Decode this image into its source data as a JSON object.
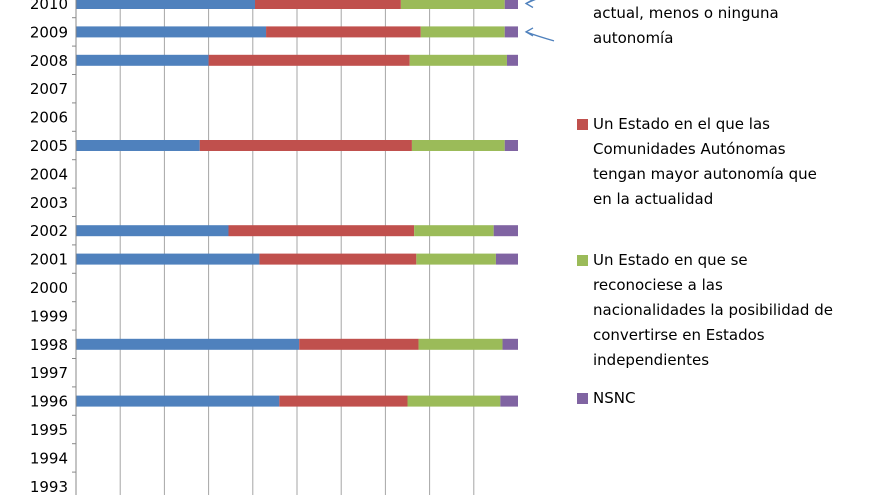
{
  "chart_data": {
    "type": "bar",
    "stacked": "percent",
    "orientation": "horizontal",
    "categories": [
      "2010",
      "2009",
      "2008",
      "2007",
      "2006",
      "2005",
      "2004",
      "2003",
      "2002",
      "2001",
      "2000",
      "1999",
      "1998",
      "1997",
      "1996",
      "1995",
      "1994",
      "1993"
    ],
    "series": [
      {
        "name": "",
        "color": "#4f81bd",
        "values": [
          40.5,
          43.0,
          30.0,
          null,
          null,
          28.0,
          null,
          null,
          34.5,
          41.5,
          null,
          null,
          50.5,
          null,
          46.0,
          null,
          null,
          null
        ]
      },
      {
        "name": "Un Estado en el que las Comunidades Autónomas tengan mayor autonomía que en la actualidad",
        "color": "#c0504d",
        "values": [
          33.0,
          35.0,
          45.5,
          null,
          null,
          48.0,
          null,
          null,
          42.0,
          35.5,
          null,
          null,
          27.0,
          null,
          29.0,
          null,
          null,
          null
        ]
      },
      {
        "name": "Un Estado en que se reconociese a las nacionalidades la posibilidad de convertirse en Estados independientes",
        "color": "#9bbb59",
        "values": [
          23.5,
          19.0,
          22.0,
          null,
          null,
          21.0,
          null,
          null,
          18.0,
          18.0,
          null,
          null,
          19.0,
          null,
          21.0,
          null,
          null,
          null
        ]
      },
      {
        "name": "NSNC",
        "color": "#8064a2",
        "values": [
          3.0,
          3.0,
          2.5,
          null,
          null,
          3.0,
          null,
          null,
          5.5,
          5.0,
          null,
          null,
          3.5,
          null,
          4.0,
          null,
          null,
          null
        ]
      }
    ],
    "xlim": [
      0,
      100
    ],
    "grid": true,
    "legend_position": "right",
    "legend": [
      {
        "text_lines": [
          "actual, menos o ninguna",
          "autonomía"
        ],
        "marker": false
      },
      {
        "text_lines": [
          "Un Estado en el que las",
          "Comunidades Autónomas",
          "tengan mayor autonomía que",
          "en la actualidad"
        ],
        "marker": true,
        "color": "#c0504d"
      },
      {
        "text_lines": [
          "Un Estado en que se",
          "reconociese a las",
          "nacionalidades la posibilidad de",
          "convertirse en Estados",
          "independientes"
        ],
        "marker": true,
        "color": "#9bbb59"
      },
      {
        "text_lines": [
          "NSNC"
        ],
        "marker": true,
        "color": "#8064a2"
      }
    ],
    "arrow_color": "#4f81bd",
    "arrow_targets": [
      "2010",
      "2009"
    ]
  }
}
